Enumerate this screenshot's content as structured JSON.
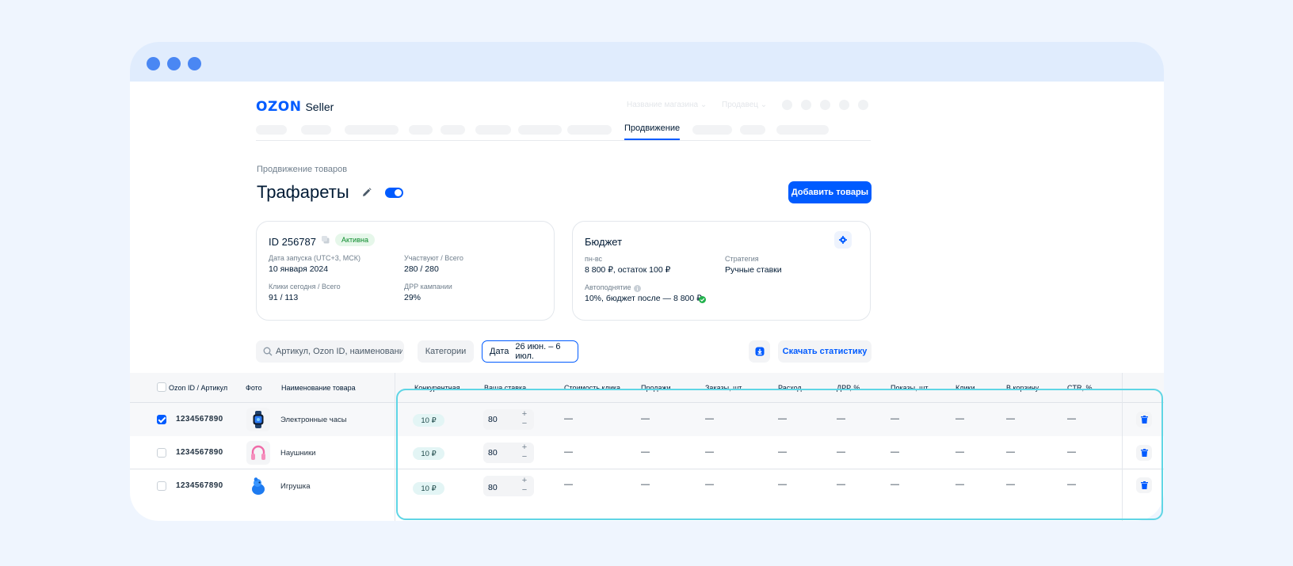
{
  "brand": {
    "logo": "OZON",
    "product": "Seller"
  },
  "header": {
    "store_name": "Название магазина",
    "role": "Продавец"
  },
  "nav": {
    "active_tab": "Продвижение"
  },
  "breadcrumb": "Продвижение товаров",
  "page": {
    "title": "Трафареты",
    "toggle_on": true,
    "add_button": "Добавить товары"
  },
  "campaign_card": {
    "id_label": "ID 256787",
    "status": "Активна",
    "launch_label": "Дата запуска (UTC+3, МСК)",
    "launch_value": "10 января 2024",
    "participants_label": "Участвуют / Всего",
    "participants_value": "280 / 280",
    "clicks_label": "Клики сегодня / Всего",
    "clicks_value": "91 / 113",
    "drr_label": "ДРР кампании",
    "drr_value": "29%"
  },
  "budget_card": {
    "title": "Бюджет",
    "schedule_label": "пн-вс",
    "schedule_value": "8 800 ₽, остаток 100 ₽",
    "strategy_label": "Стратегия",
    "strategy_value": "Ручные ставки",
    "autoraise_label": "Автоподнятие",
    "autoraise_value": "10%, бюджет после — 8 800 ₽"
  },
  "filters": {
    "search_placeholder": "Артикул, Ozon ID, наименование",
    "categories": "Категории",
    "date_label": "Дата",
    "date_value": "26 июн. – 6 июл.",
    "download_button": "Скачать статистику"
  },
  "table": {
    "columns": [
      "Ozon ID / Артикул",
      "Фото",
      "Наименование товара",
      "Конкурентная",
      "Ваша ставка",
      "Стоимость клика",
      "Продажи",
      "Заказы, шт",
      "Расход",
      "ДРР, %",
      "Показы, шт",
      "Клики",
      "В корзину",
      "CTR, %"
    ],
    "empty_value": "—",
    "rows": [
      {
        "checked": true,
        "sku": "1234567890",
        "photo": "watch-icon",
        "name": "Электронные часы",
        "competitive": "10 ₽",
        "bid": "80"
      },
      {
        "checked": false,
        "sku": "1234567890",
        "photo": "headphones-icon",
        "name": "Наушники",
        "competitive": "10 ₽",
        "bid": "80"
      },
      {
        "checked": false,
        "sku": "1234567890",
        "photo": "toy-icon",
        "name": "Игрушка",
        "competitive": "10 ₽",
        "bid": "80"
      }
    ]
  },
  "colors": {
    "accent": "#005bff",
    "background": "#eff5fe",
    "titlebar": "#e0ecfd",
    "highlight": "#5fd5e5",
    "success": "#22b14c"
  }
}
